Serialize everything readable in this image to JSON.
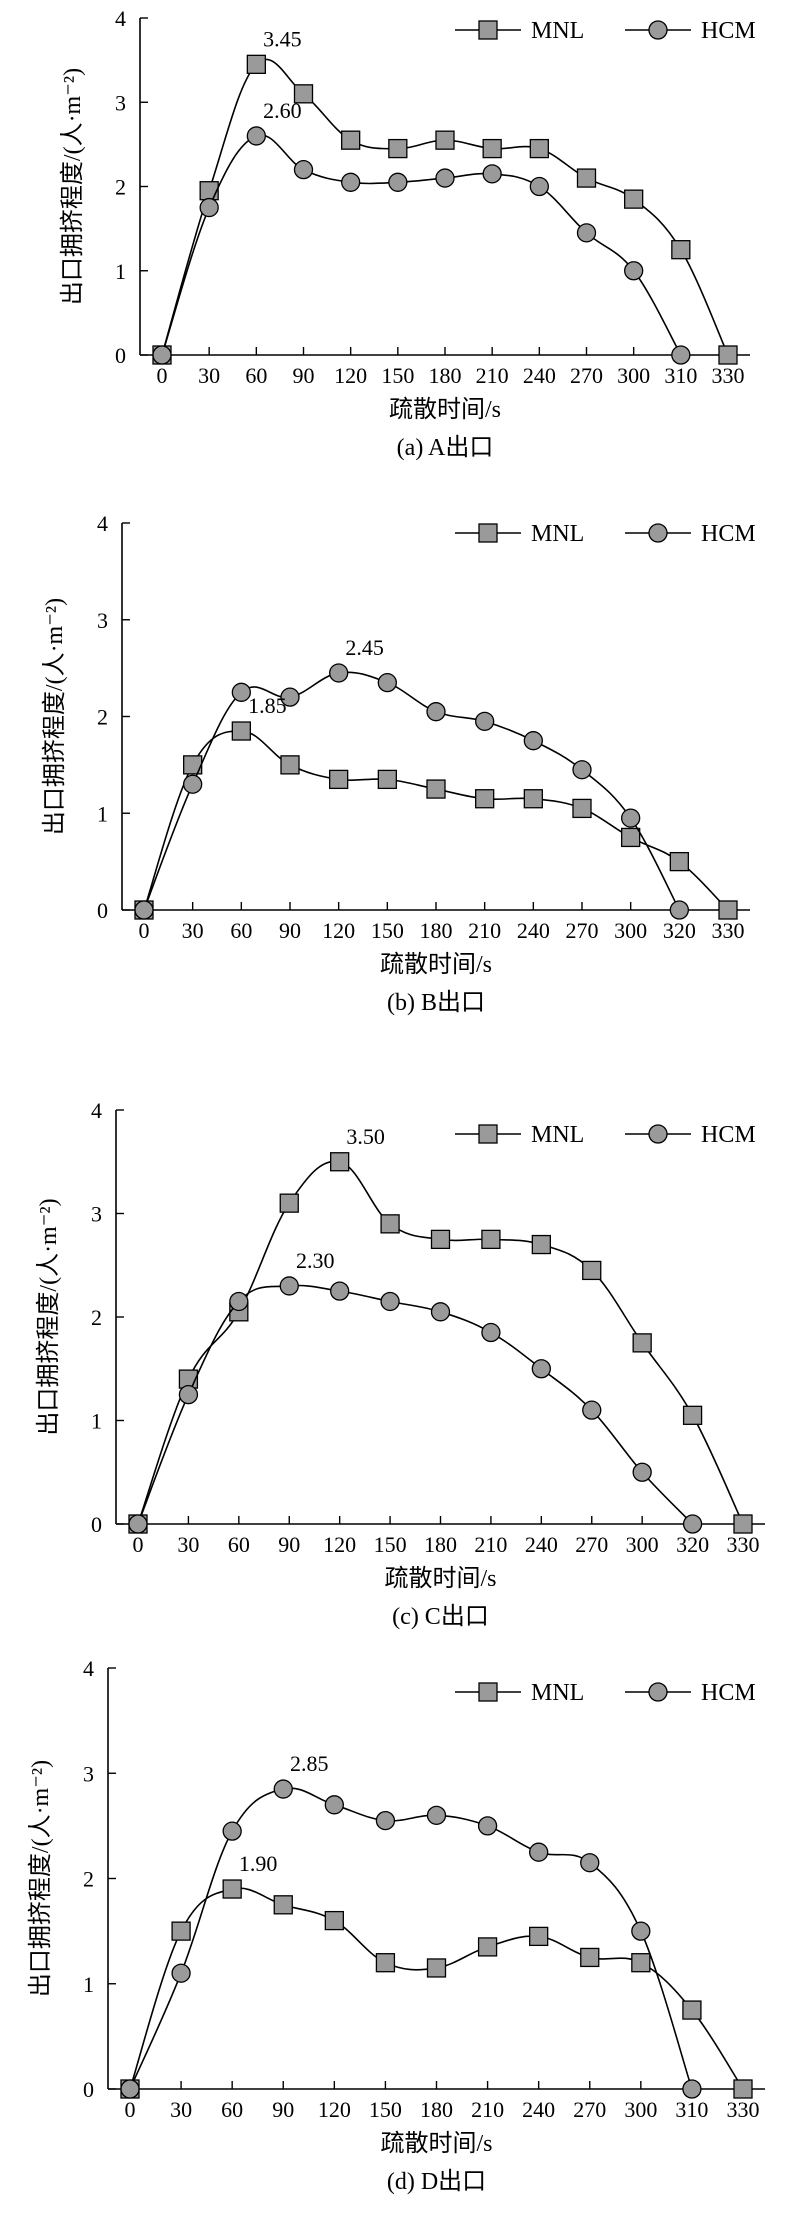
{
  "chart_data": [
    {
      "type": "line",
      "caption": "(a) A出口",
      "xlabel": "疏散时间/s",
      "ylabel": "出口拥挤程度/(人·m⁻²)",
      "ylim": [
        0,
        4
      ],
      "yticks": [
        0,
        1,
        2,
        3,
        4
      ],
      "xticks": [
        0,
        30,
        60,
        90,
        120,
        150,
        180,
        210,
        240,
        270,
        300,
        310,
        330
      ],
      "legend": "top-right",
      "series": [
        {
          "name": "MNL",
          "marker": "square",
          "x": [
            0,
            30,
            60,
            90,
            120,
            150,
            180,
            210,
            240,
            270,
            300,
            310,
            330
          ],
          "y": [
            0,
            1.95,
            3.45,
            3.1,
            2.55,
            2.45,
            2.55,
            2.45,
            2.45,
            2.1,
            1.85,
            1.25,
            0
          ]
        },
        {
          "name": "HCM",
          "marker": "circle",
          "x": [
            0,
            30,
            60,
            90,
            120,
            150,
            180,
            210,
            240,
            270,
            300,
            310
          ],
          "y": [
            0,
            1.75,
            2.6,
            2.2,
            2.05,
            2.05,
            2.1,
            2.15,
            2.0,
            1.45,
            1.0,
            0
          ]
        }
      ],
      "annotations": [
        {
          "text": "3.45",
          "x": 60,
          "y": 3.45
        },
        {
          "text": "2.60",
          "x": 60,
          "y": 2.6
        }
      ]
    },
    {
      "type": "line",
      "caption": "(b) B出口",
      "xlabel": "疏散时间/s",
      "ylabel": "出口拥挤程度/(人·m⁻²)",
      "ylim": [
        0,
        4
      ],
      "yticks": [
        0,
        1,
        2,
        3,
        4
      ],
      "xticks": [
        0,
        30,
        60,
        90,
        120,
        150,
        180,
        210,
        240,
        270,
        300,
        320,
        330
      ],
      "legend": "top-right",
      "series": [
        {
          "name": "MNL",
          "marker": "square",
          "x": [
            0,
            30,
            60,
            90,
            120,
            150,
            180,
            210,
            240,
            270,
            300,
            320,
            330
          ],
          "y": [
            0,
            1.5,
            1.85,
            1.5,
            1.35,
            1.35,
            1.25,
            1.15,
            1.15,
            1.05,
            0.75,
            0.5,
            0
          ]
        },
        {
          "name": "HCM",
          "marker": "circle",
          "x": [
            0,
            30,
            60,
            90,
            120,
            150,
            180,
            210,
            240,
            270,
            300,
            320
          ],
          "y": [
            0,
            1.3,
            2.25,
            2.2,
            2.45,
            2.35,
            2.05,
            1.95,
            1.75,
            1.45,
            0.95,
            0
          ]
        }
      ],
      "annotations": [
        {
          "text": "2.45",
          "x": 120,
          "y": 2.45
        },
        {
          "text": "1.85",
          "x": 60,
          "y": 1.85
        }
      ]
    },
    {
      "type": "line",
      "caption": "(c) C出口",
      "xlabel": "疏散时间/s",
      "ylabel": "出口拥挤程度/(人·m⁻²)",
      "ylim": [
        0,
        4
      ],
      "yticks": [
        0,
        1,
        2,
        3,
        4
      ],
      "xticks": [
        0,
        30,
        60,
        90,
        120,
        150,
        180,
        210,
        240,
        270,
        300,
        320,
        330
      ],
      "legend": "top-right",
      "series": [
        {
          "name": "MNL",
          "marker": "square",
          "x": [
            0,
            30,
            60,
            90,
            120,
            150,
            180,
            210,
            240,
            270,
            300,
            320,
            330
          ],
          "y": [
            0,
            1.4,
            2.05,
            3.1,
            3.5,
            2.9,
            2.75,
            2.75,
            2.7,
            2.45,
            1.75,
            1.05,
            0
          ]
        },
        {
          "name": "HCM",
          "marker": "circle",
          "x": [
            0,
            30,
            60,
            90,
            120,
            150,
            180,
            210,
            240,
            270,
            300,
            320
          ],
          "y": [
            0,
            1.25,
            2.15,
            2.3,
            2.25,
            2.15,
            2.05,
            1.85,
            1.5,
            1.1,
            0.5,
            0
          ]
        }
      ],
      "annotations": [
        {
          "text": "3.50",
          "x": 120,
          "y": 3.5
        },
        {
          "text": "2.30",
          "x": 90,
          "y": 2.3
        }
      ]
    },
    {
      "type": "line",
      "caption": "(d) D出口",
      "xlabel": "疏散时间/s",
      "ylabel": "出口拥挤程度/(人·m⁻²)",
      "ylim": [
        0,
        4
      ],
      "yticks": [
        0,
        1,
        2,
        3,
        4
      ],
      "xticks": [
        0,
        30,
        60,
        90,
        120,
        150,
        180,
        210,
        240,
        270,
        300,
        310,
        330
      ],
      "legend": "top-right",
      "series": [
        {
          "name": "MNL",
          "marker": "square",
          "x": [
            0,
            30,
            60,
            90,
            120,
            150,
            180,
            210,
            240,
            270,
            300,
            310,
            330
          ],
          "y": [
            0,
            1.5,
            1.9,
            1.75,
            1.6,
            1.2,
            1.15,
            1.35,
            1.45,
            1.25,
            1.2,
            0.75,
            0
          ]
        },
        {
          "name": "HCM",
          "marker": "circle",
          "x": [
            0,
            30,
            60,
            90,
            120,
            150,
            180,
            210,
            240,
            270,
            300,
            310
          ],
          "y": [
            0,
            1.1,
            2.45,
            2.85,
            2.7,
            2.55,
            2.6,
            2.5,
            2.25,
            2.15,
            1.5,
            0
          ]
        }
      ],
      "annotations": [
        {
          "text": "2.85",
          "x": 90,
          "y": 2.85
        },
        {
          "text": "1.90",
          "x": 60,
          "y": 1.9
        }
      ]
    }
  ]
}
